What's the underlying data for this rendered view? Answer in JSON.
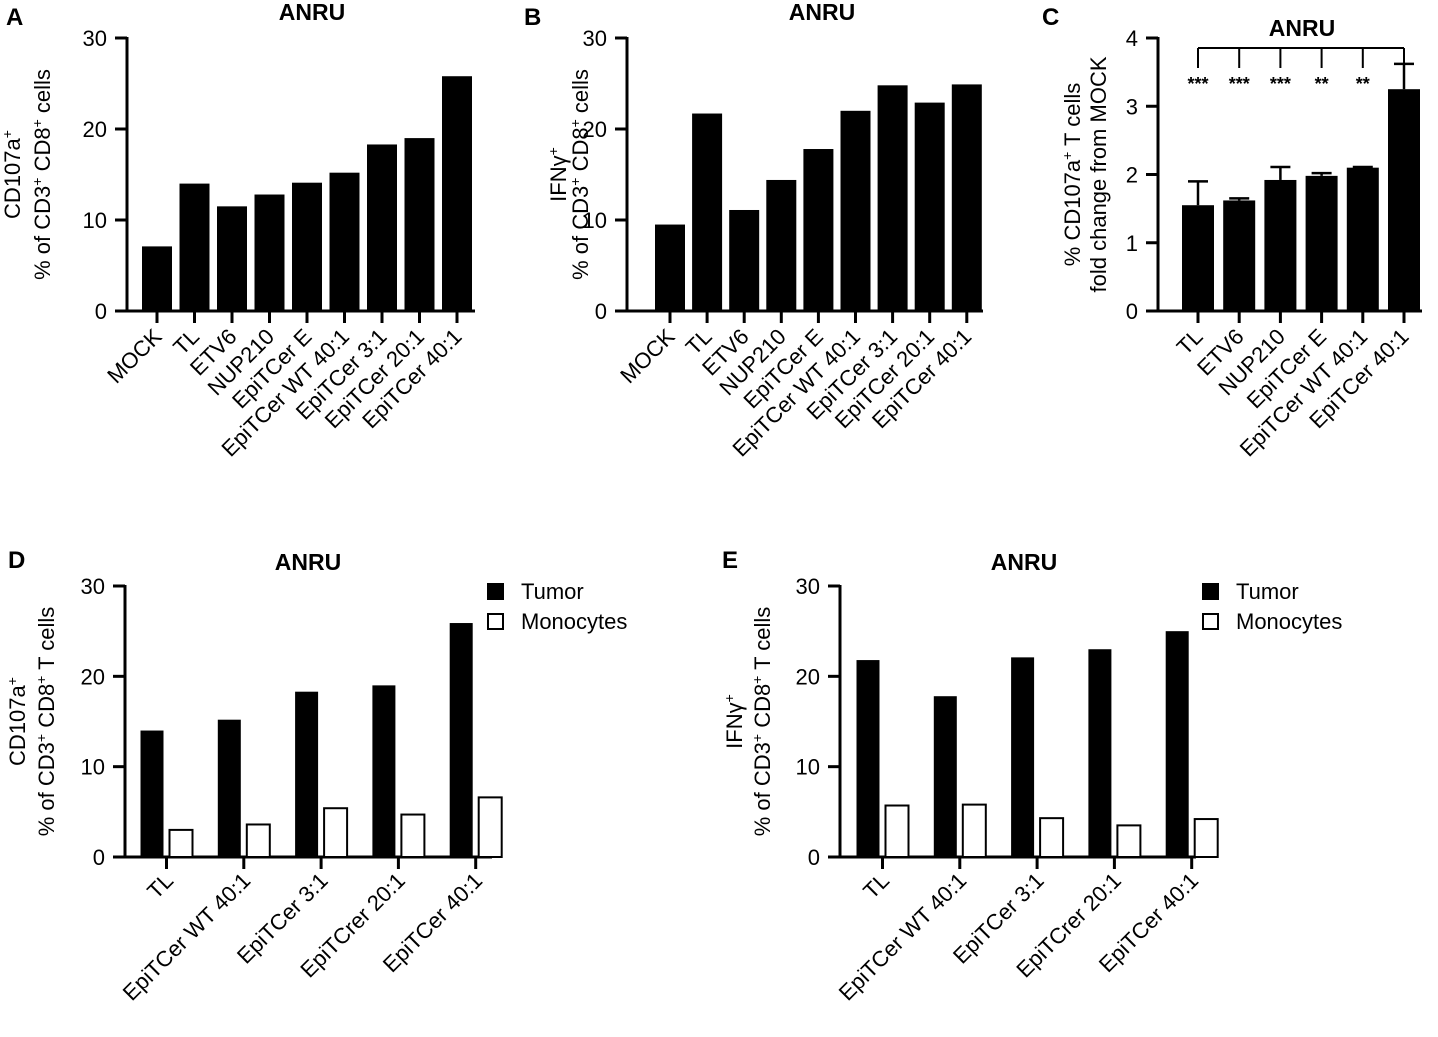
{
  "chart_data": [
    {
      "panel": "A",
      "type": "bar",
      "title": "ANRU",
      "ylabel_line1": "CD107a",
      "ylabel_line1_sup": "+",
      "ylabel_line2": "% of CD3+ CD8+ cells",
      "ylim": [
        0,
        30
      ],
      "yticks": [
        0,
        10,
        20,
        30
      ],
      "categories": [
        "MOCK",
        "TL",
        "ETV6",
        "NUP210",
        "EpiTCer E",
        "EpiTCer WT 40:1",
        "EpiTCer 3:1",
        "EpiTCer 20:1",
        "EpiTCer 40:1"
      ],
      "values": [
        7.1,
        14.0,
        11.5,
        12.8,
        14.1,
        15.2,
        18.3,
        19.0,
        25.8
      ]
    },
    {
      "panel": "B",
      "type": "bar",
      "title": "ANRU",
      "ylabel_line1": "IFNγ",
      "ylabel_line1_sup": "+",
      "ylabel_line2": "% of CD3+ CD8+ cells",
      "ylim": [
        0,
        30
      ],
      "yticks": [
        0,
        10,
        20,
        30
      ],
      "categories": [
        "MOCK",
        "TL",
        "ETV6",
        "NUP210",
        "EpiTCer E",
        "EpiTCer WT 40:1",
        "EpiTCer 3:1",
        "EpiTCer 20:1",
        "EpiTCer 40:1"
      ],
      "values": [
        9.5,
        21.7,
        11.1,
        14.4,
        17.8,
        22.0,
        24.8,
        22.9,
        24.9
      ]
    },
    {
      "panel": "C",
      "type": "bar",
      "title": "ANRU",
      "ylabel_line1": "% CD107a+ T cells",
      "ylabel_line2": "fold change from MOCK",
      "ylim": [
        0,
        4
      ],
      "yticks": [
        0,
        1,
        2,
        3,
        4
      ],
      "categories": [
        "TL",
        "ETV6",
        "NUP210",
        "EpiTCer E",
        "EpiTCer WT 40:1",
        "EpiTCer 40:1"
      ],
      "values": [
        1.55,
        1.62,
        1.92,
        1.98,
        2.1,
        3.25
      ],
      "errors": [
        0.35,
        0.03,
        0.19,
        0.04,
        0.01,
        0.37
      ],
      "significance": [
        "***",
        "***",
        "***",
        "**",
        "**"
      ],
      "comparison_reference": "EpiTCer 40:1"
    },
    {
      "panel": "D",
      "type": "bar",
      "title": "ANRU",
      "ylabel_line1": "CD107a",
      "ylabel_line1_sup": "+",
      "ylabel_line2": "% of CD3+ CD8+ T cells",
      "ylim": [
        0,
        30
      ],
      "yticks": [
        0,
        10,
        20,
        30
      ],
      "categories": [
        "TL",
        "EpiTCer WT 40:1",
        "EpiTCer 3:1",
        "EpiTCrer 20:1",
        "EpiTCer 40:1"
      ],
      "series": [
        {
          "name": "Tumor",
          "values": [
            14.0,
            15.2,
            18.3,
            19.0,
            25.9
          ]
        },
        {
          "name": "Monocytes",
          "values": [
            3.0,
            3.6,
            5.4,
            4.7,
            6.6
          ]
        }
      ],
      "legend": "top-right"
    },
    {
      "panel": "E",
      "type": "bar",
      "title": "ANRU",
      "ylabel_line1": "IFNγ",
      "ylabel_line1_sup": "+",
      "ylabel_line2": "% of CD3+ CD8+ T cells",
      "ylim": [
        0,
        30
      ],
      "yticks": [
        0,
        10,
        20,
        30
      ],
      "categories": [
        "TL",
        "EpiTCer WT 40:1",
        "EpiTCer 3:1",
        "EpiTCrer 20:1",
        "EpiTCer 40:1"
      ],
      "series": [
        {
          "name": "Tumor",
          "values": [
            21.8,
            17.8,
            22.1,
            23.0,
            25.0
          ]
        },
        {
          "name": "Monocytes",
          "values": [
            5.7,
            5.8,
            4.3,
            3.5,
            4.2
          ]
        }
      ],
      "legend": "top-right"
    }
  ],
  "colors": {
    "tumor": "#000000",
    "monocytes": "#ffffff",
    "axis": "#000000"
  }
}
